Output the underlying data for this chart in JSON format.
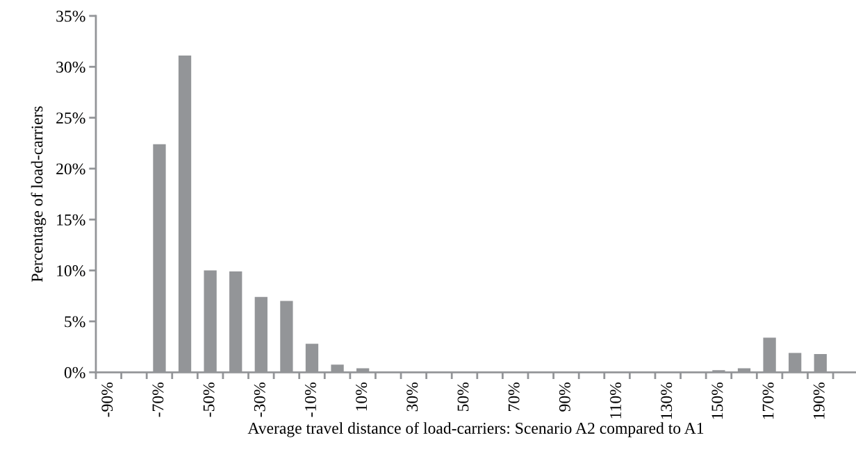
{
  "chart_data": {
    "type": "bar",
    "xlabel": "Average travel distance of load-carriers: Scenario A2 compared to A1",
    "ylabel": "Percentage of load-carriers",
    "categories": [
      "-90%",
      null,
      "-70%",
      null,
      "-50%",
      null,
      "-30%",
      null,
      "-10%",
      null,
      "10%",
      null,
      "30%",
      null,
      "50%",
      null,
      "70%",
      null,
      "90%",
      null,
      "110%",
      null,
      "130%",
      null,
      "150%",
      null,
      "170%",
      null,
      "190%"
    ],
    "values": [
      0,
      0,
      22.4,
      31.1,
      10.0,
      9.9,
      7.4,
      7.0,
      2.8,
      0.75,
      0.4,
      0,
      0,
      0,
      0,
      0,
      0,
      0,
      0,
      0,
      0,
      0,
      0,
      0,
      0.2,
      0.4,
      3.4,
      1.9,
      1.8
    ],
    "color": "#939598",
    "ylim": [
      0,
      35
    ],
    "yticks": [
      {
        "value": 0,
        "label": "0%"
      },
      {
        "value": 5,
        "label": "5%"
      },
      {
        "value": 10,
        "label": "10%"
      },
      {
        "value": 15,
        "label": "15%"
      },
      {
        "value": 20,
        "label": "20%"
      },
      {
        "value": 25,
        "label": "25%"
      },
      {
        "value": 30,
        "label": "30%"
      },
      {
        "value": 35,
        "label": "35%"
      }
    ],
    "grid": false
  }
}
